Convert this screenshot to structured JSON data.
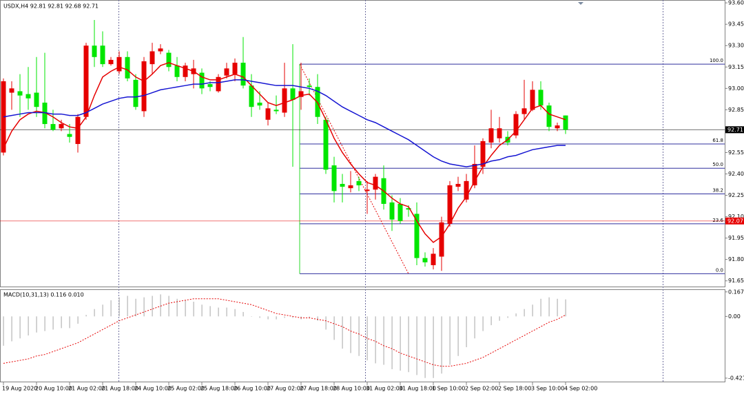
{
  "chart_data": {
    "type": "candlestick",
    "title": "USDX,H4  92.81 92.81 92.68 92.71",
    "categories": [
      "19 Aug 2020",
      null,
      null,
      null,
      "20 Aug 10:00",
      null,
      null,
      null,
      "21 Aug 02:00",
      null,
      null,
      null,
      "21 Aug 18:00",
      null,
      null,
      null,
      "24 Aug 10:00",
      null,
      null,
      null,
      "25 Aug 02:00",
      null,
      null,
      null,
      "25 Aug 18:00",
      null,
      null,
      null,
      "26 Aug 10:00",
      null,
      null,
      null,
      "27 Aug 02:00",
      null,
      null,
      null,
      "27 Aug 18:00",
      null,
      null,
      null,
      "28 Aug 10:00",
      null,
      null,
      null,
      "31 Aug 02:00",
      null,
      null,
      null,
      "31 Aug 18:00",
      null,
      null,
      null,
      "1 Sep 10:00",
      null,
      null,
      null,
      "2 Sep 02:00",
      null,
      null,
      null,
      "2 Sep 18:00",
      null,
      null,
      null,
      "3 Sep 10:00",
      null,
      null,
      null,
      "4 Sep 02:00"
    ],
    "open": [
      92.55,
      92.97,
      92.98,
      92.96,
      92.97,
      92.9,
      92.75,
      92.72,
      92.68,
      92.61,
      92.8,
      93.3,
      93.3,
      93.17,
      93.12,
      93.22,
      93.06,
      92.84,
      93.17,
      93.26,
      93.25,
      93.16,
      93.08,
      93.1,
      93.11,
      93.03,
      92.98,
      93.09,
      93.1,
      93.18,
      93.02,
      92.9,
      92.78,
      92.85,
      92.83,
      93.0,
      92.94,
      93.02,
      93.01,
      92.78,
      92.46,
      92.33,
      92.3,
      92.35,
      92.28,
      92.29,
      92.37,
      92.2,
      92.19,
      92.16,
      92.12,
      91.81,
      91.76,
      91.82,
      92.05,
      92.31,
      92.22,
      92.32,
      92.45,
      92.62,
      92.65,
      92.66,
      92.67,
      92.82,
      92.85,
      92.99,
      92.88,
      92.72,
      92.81
    ],
    "high": [
      93.07,
      93.05,
      93.1,
      93.15,
      93.22,
      93.25,
      92.85,
      92.78,
      92.75,
      92.82,
      93.32,
      93.48,
      93.4,
      93.22,
      93.26,
      93.26,
      93.1,
      93.22,
      93.32,
      93.31,
      93.27,
      93.22,
      93.18,
      93.2,
      93.14,
      93.05,
      93.1,
      93.18,
      93.21,
      93.36,
      93.1,
      92.98,
      92.9,
      92.95,
      93.18,
      93.31,
      93.18,
      93.07,
      93.1,
      92.8,
      92.52,
      92.4,
      92.42,
      92.38,
      92.35,
      92.4,
      92.46,
      92.25,
      92.23,
      92.18,
      92.2,
      91.85,
      91.88,
      92.1,
      92.35,
      92.38,
      92.4,
      92.6,
      92.65,
      92.85,
      92.8,
      92.7,
      92.84,
      93.06,
      93.05,
      93.05,
      92.9,
      92.76,
      92.81
    ],
    "low": [
      92.53,
      92.85,
      92.8,
      92.85,
      92.8,
      92.72,
      92.7,
      92.7,
      92.62,
      92.55,
      92.78,
      93.15,
      93.15,
      93.16,
      93.1,
      93.05,
      92.85,
      92.8,
      93.1,
      93.24,
      93.12,
      93.05,
      93.05,
      93.0,
      92.96,
      92.98,
      92.97,
      93.07,
      93.05,
      93.0,
      92.8,
      92.85,
      92.74,
      92.82,
      92.8,
      92.45,
      92.85,
      92.95,
      92.75,
      92.4,
      92.2,
      92.2,
      92.27,
      92.28,
      92.12,
      92.22,
      92.15,
      92.0,
      92.05,
      92.1,
      91.76,
      91.75,
      91.73,
      91.72,
      92.03,
      92.28,
      92.2,
      92.3,
      92.4,
      92.58,
      92.62,
      92.6,
      92.65,
      92.78,
      92.84,
      92.85,
      92.7,
      92.7,
      92.68
    ],
    "close": [
      93.05,
      93.0,
      92.95,
      92.93,
      92.87,
      92.75,
      92.71,
      92.75,
      92.66,
      92.8,
      93.3,
      93.22,
      93.17,
      93.2,
      93.22,
      93.07,
      92.87,
      93.19,
      93.26,
      93.28,
      93.15,
      93.08,
      93.16,
      93.14,
      93.0,
      93.01,
      93.08,
      93.14,
      93.18,
      93.02,
      92.87,
      92.88,
      92.86,
      92.84,
      93.0,
      92.92,
      92.98,
      93.01,
      92.8,
      92.43,
      92.28,
      92.31,
      92.32,
      92.32,
      92.29,
      92.38,
      92.19,
      92.08,
      92.07,
      92.15,
      91.81,
      91.78,
      91.84,
      92.06,
      92.32,
      92.33,
      92.35,
      92.47,
      92.63,
      92.72,
      92.72,
      92.62,
      92.82,
      92.86,
      92.99,
      92.88,
      92.73,
      92.74,
      92.71
    ],
    "up_color": "#e60000",
    "down_color": "#00e600",
    "ylim": [
      91.61,
      93.62
    ],
    "yticks": [
      {
        "value": 93.6,
        "label": "93.60"
      },
      93.45,
      {
        "value": 93.3,
        "label": "93.30"
      },
      93.15,
      {
        "value": 93,
        "label": "93.00"
      },
      92.85,
      92.55,
      {
        "value": 92.4,
        "label": "92.40"
      },
      92.25,
      {
        "value": 92.1,
        "label": "92.10"
      },
      91.95,
      {
        "value": 91.8,
        "label": "91.80"
      },
      91.65
    ],
    "moving_averages": [
      {
        "color": "#e60000",
        "values": [
          92.58,
          92.7,
          92.78,
          92.82,
          92.84,
          92.83,
          92.8,
          92.76,
          92.73,
          92.72,
          92.8,
          92.95,
          93.08,
          93.12,
          93.15,
          93.13,
          93.08,
          93.05,
          93.1,
          93.16,
          93.18,
          93.16,
          93.14,
          93.12,
          93.08,
          93.06,
          93.06,
          93.08,
          93.1,
          93.08,
          93.02,
          92.96,
          92.9,
          92.88,
          92.9,
          92.92,
          92.95,
          92.96,
          92.9,
          92.78,
          92.65,
          92.55,
          92.47,
          92.4,
          92.34,
          92.32,
          92.28,
          92.23,
          92.19,
          92.17,
          92.07,
          91.98,
          91.92,
          91.96,
          92.05,
          92.16,
          92.24,
          92.35,
          92.45,
          92.53,
          92.6,
          92.64,
          92.7,
          92.78,
          92.86,
          92.88,
          92.82,
          92.8,
          92.78
        ]
      },
      {
        "color": "#1414d2",
        "values": [
          92.8,
          92.81,
          92.82,
          92.83,
          92.83,
          92.83,
          92.82,
          92.82,
          92.81,
          92.81,
          92.83,
          92.86,
          92.89,
          92.91,
          92.93,
          92.94,
          92.94,
          92.95,
          92.97,
          92.99,
          93.0,
          93.01,
          93.02,
          93.03,
          93.03,
          93.04,
          93.04,
          93.05,
          93.06,
          93.06,
          93.05,
          93.04,
          93.03,
          93.02,
          93.02,
          93.02,
          93.01,
          93.0,
          92.98,
          92.95,
          92.91,
          92.87,
          92.84,
          92.81,
          92.78,
          92.76,
          92.73,
          92.7,
          92.67,
          92.64,
          92.6,
          92.56,
          92.52,
          92.49,
          92.47,
          92.46,
          92.45,
          92.46,
          92.47,
          92.49,
          92.5,
          92.52,
          92.53,
          92.55,
          92.57,
          92.58,
          92.59,
          92.6,
          92.6
        ]
      }
    ],
    "price_lines": [
      {
        "value": 92.71,
        "color": "#000000"
      },
      {
        "value": 92.07,
        "color": "#e60000"
      }
    ],
    "fibonacci": {
      "color": "#2e2e9e",
      "from_candle": 36,
      "to_candle": 49,
      "levels": [
        {
          "label": "100.0",
          "price": 93.17
        },
        {
          "label": "61.8",
          "price": 92.61
        },
        {
          "label": "50.0",
          "price": 92.44
        },
        {
          "label": "38.2",
          "price": 92.26
        },
        {
          "label": "23.6",
          "price": 92.05
        },
        {
          "label": "0.0",
          "price": 91.7
        }
      ]
    },
    "macd": {
      "label": "MACD(10,31,13) 0.116 0.010",
      "histogram_color": "#b4b4b4",
      "signal_color": "#e60000",
      "histogram": [
        -0.2,
        -0.17,
        -0.15,
        -0.13,
        -0.11,
        -0.1,
        -0.09,
        -0.08,
        -0.08,
        -0.05,
        0.01,
        0.05,
        0.08,
        0.11,
        0.13,
        0.14,
        0.12,
        0.13,
        0.14,
        0.15,
        0.14,
        0.12,
        0.11,
        0.1,
        0.08,
        0.07,
        0.06,
        0.06,
        0.05,
        0.03,
        0.0,
        -0.01,
        -0.02,
        -0.02,
        -0.01,
        -0.01,
        -0.02,
        -0.01,
        -0.03,
        -0.09,
        -0.16,
        -0.22,
        -0.25,
        -0.27,
        -0.3,
        -0.32,
        -0.33,
        -0.36,
        -0.37,
        -0.38,
        -0.4,
        -0.42,
        -0.42,
        -0.39,
        -0.33,
        -0.27,
        -0.21,
        -0.15,
        -0.1,
        -0.06,
        -0.03,
        -0.01,
        0.02,
        0.05,
        0.08,
        0.12,
        0.13,
        0.12,
        0.116
      ],
      "signal": [
        -0.32,
        -0.31,
        -0.3,
        -0.29,
        -0.27,
        -0.26,
        -0.24,
        -0.22,
        -0.2,
        -0.18,
        -0.15,
        -0.12,
        -0.09,
        -0.06,
        -0.03,
        -0.01,
        0.01,
        0.03,
        0.05,
        0.07,
        0.09,
        0.1,
        0.11,
        0.12,
        0.12,
        0.12,
        0.12,
        0.11,
        0.1,
        0.09,
        0.08,
        0.06,
        0.04,
        0.02,
        0.01,
        0.0,
        -0.01,
        -0.01,
        -0.02,
        -0.03,
        -0.05,
        -0.07,
        -0.1,
        -0.12,
        -0.15,
        -0.17,
        -0.2,
        -0.22,
        -0.25,
        -0.27,
        -0.29,
        -0.31,
        -0.33,
        -0.34,
        -0.34,
        -0.33,
        -0.32,
        -0.3,
        -0.28,
        -0.25,
        -0.22,
        -0.19,
        -0.16,
        -0.13,
        -0.1,
        -0.07,
        -0.04,
        -0.02,
        0.01
      ],
      "ylim": [
        -0.44,
        0.18
      ],
      "yticks": [
        0.167,
        {
          "value": 0,
          "label": "0.00"
        },
        -0.421
      ]
    }
  }
}
